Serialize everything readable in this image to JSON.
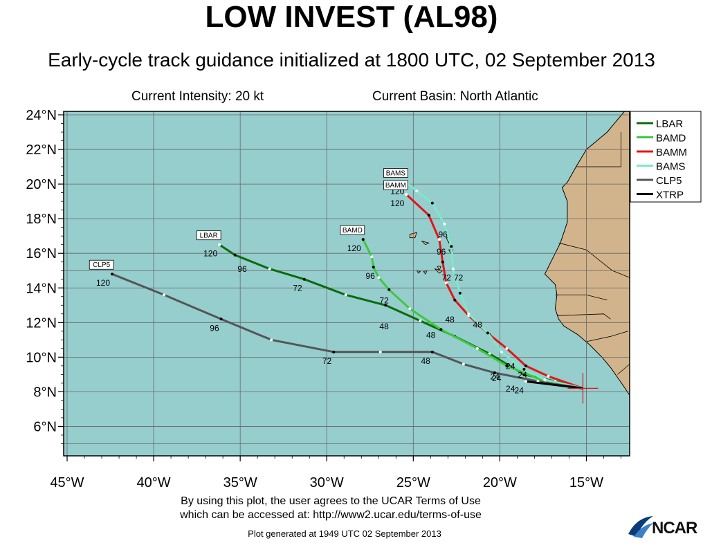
{
  "header": {
    "title": "LOW INVEST (AL98)",
    "subtitle": "Early-cycle track guidance initialized at 1800 UTC, 02 September 2013",
    "intensity": "Current Intensity: 20 kt",
    "basin": "Current Basin: North Atlantic"
  },
  "footer": {
    "terms_line1": "By using this plot, the user agrees to the UCAR Terms of Use",
    "terms_line2": "which can be accessed at: http://www2.ucar.edu/terms-of-use",
    "generated": "Plot generated at 1949 UTC   02 September 2013",
    "logo": "NCAR"
  },
  "colors": {
    "ocean": "#96cdcd",
    "land": "#d2b48c",
    "grid": "#666666",
    "center_marker": "#e0151a"
  },
  "map": {
    "lon_range": [
      -45.2,
      -12.5
    ],
    "lat_range": [
      4.3,
      24.2
    ],
    "lon_ticks": [
      {
        "value": -45,
        "label": "45°W"
      },
      {
        "value": -40,
        "label": "40°W"
      },
      {
        "value": -35,
        "label": "35°W"
      },
      {
        "value": -30,
        "label": "30°W"
      },
      {
        "value": -25,
        "label": "25°W"
      },
      {
        "value": -20,
        "label": "20°W"
      },
      {
        "value": -15,
        "label": "15°W"
      }
    ],
    "lat_ticks": [
      {
        "value": 6,
        "label": "6°N"
      },
      {
        "value": 8,
        "label": "8°N"
      },
      {
        "value": 10,
        "label": "10°N"
      },
      {
        "value": 12,
        "label": "12°N"
      },
      {
        "value": 14,
        "label": "14°N"
      },
      {
        "value": 16,
        "label": "16°N"
      },
      {
        "value": 18,
        "label": "18°N"
      },
      {
        "value": 20,
        "label": "20°N"
      },
      {
        "value": 22,
        "label": "22°N"
      },
      {
        "value": 24,
        "label": "24°N"
      }
    ],
    "storm_center": {
      "lon": -15.2,
      "lat": 8.2
    },
    "land_outline": [
      [
        -12.5,
        24.2
      ],
      [
        -12.8,
        24.2
      ],
      [
        -13.8,
        23.0
      ],
      [
        -15.0,
        22.0
      ],
      [
        -15.6,
        21.0
      ],
      [
        -16.1,
        20.1
      ],
      [
        -16.4,
        19.8
      ],
      [
        -16.1,
        19.0
      ],
      [
        -16.1,
        17.8
      ],
      [
        -16.5,
        16.6
      ],
      [
        -17.0,
        15.6
      ],
      [
        -17.4,
        14.8
      ],
      [
        -16.8,
        14.2
      ],
      [
        -16.7,
        13.6
      ],
      [
        -16.8,
        12.8
      ],
      [
        -16.6,
        12.2
      ],
      [
        -16.3,
        11.8
      ],
      [
        -15.5,
        11.3
      ],
      [
        -14.8,
        10.7
      ],
      [
        -14.1,
        10.0
      ],
      [
        -13.6,
        9.4
      ],
      [
        -12.9,
        8.4
      ],
      [
        -12.5,
        7.8
      ]
    ],
    "islands": [
      [
        [
          -25.2,
          17.1
        ],
        [
          -24.8,
          17.2
        ],
        [
          -24.9,
          16.9
        ],
        [
          -25.2,
          16.9
        ]
      ],
      [
        [
          -24.5,
          16.7
        ],
        [
          -24.1,
          16.6
        ],
        [
          -24.3,
          16.5
        ]
      ],
      [
        [
          -23.1,
          16.9
        ],
        [
          -22.9,
          16.9
        ],
        [
          -22.95,
          16.6
        ]
      ],
      [
        [
          -22.95,
          16.2
        ],
        [
          -22.7,
          16.2
        ],
        [
          -22.8,
          15.95
        ]
      ],
      [
        [
          -23.6,
          15.25
        ],
        [
          -23.4,
          15.25
        ],
        [
          -23.5,
          15.0
        ]
      ],
      [
        [
          -23.75,
          15.1
        ],
        [
          -23.3,
          15.0
        ],
        [
          -23.5,
          14.85
        ]
      ],
      [
        [
          -24.4,
          14.95
        ],
        [
          -24.2,
          15.0
        ],
        [
          -24.3,
          14.8
        ]
      ],
      [
        [
          -24.8,
          15.0
        ],
        [
          -24.6,
          14.95
        ],
        [
          -24.7,
          14.85
        ]
      ]
    ]
  },
  "chart_data": {
    "type": "line",
    "title": "LOW INVEST (AL98)",
    "xlabel": "",
    "ylabel": "",
    "xlim": [
      -45.2,
      -12.5
    ],
    "ylim": [
      4.3,
      24.2
    ],
    "legend_position": "top-right",
    "series": [
      {
        "name": "LBAR",
        "color": "#0a6b0a",
        "points": [
          [
            -15.2,
            8.2
          ],
          [
            -16.8,
            8.6
          ],
          [
            -18.6,
            9.0
          ],
          [
            -20.6,
            10.2
          ],
          [
            -22.6,
            11.2
          ],
          [
            -24.6,
            12.1
          ],
          [
            -26.6,
            13.0
          ],
          [
            -28.9,
            13.6
          ],
          [
            -31.3,
            14.5
          ],
          [
            -33.3,
            15.1
          ],
          [
            -35.3,
            15.9
          ],
          [
            -36.2,
            16.5
          ]
        ],
        "tau_labels": [
          {
            "lon": -19.0,
            "lat": 8.7,
            "text": "24"
          },
          {
            "lon": -23.6,
            "lat": 11.8,
            "text": "48"
          },
          {
            "lon": -31.3,
            "lat": 14.5,
            "text": "72"
          },
          {
            "lon": -34.5,
            "lat": 15.6,
            "text": "96"
          },
          {
            "lon": -36.2,
            "lat": 16.5,
            "text": "120"
          }
        ],
        "box_label": {
          "lon": -36.2,
          "lat": 16.5,
          "text": "LBAR"
        }
      },
      {
        "name": "BAMD",
        "color": "#3ec83e",
        "points": [
          [
            -15.2,
            8.2
          ],
          [
            -17.4,
            8.6
          ],
          [
            -19.6,
            9.5
          ],
          [
            -21.3,
            10.5
          ],
          [
            -23.4,
            11.6
          ],
          [
            -25.2,
            12.8
          ],
          [
            -26.4,
            13.9
          ],
          [
            -27.0,
            14.6
          ],
          [
            -27.3,
            15.2
          ],
          [
            -27.4,
            15.8
          ],
          [
            -27.9,
            16.8
          ]
        ],
        "tau_labels": [
          {
            "lon": -19.9,
            "lat": 9.4,
            "text": "24"
          },
          {
            "lon": -26.3,
            "lat": 12.3,
            "text": "48"
          },
          {
            "lon": -26.3,
            "lat": 13.8,
            "text": "72"
          },
          {
            "lon": -27.1,
            "lat": 15.2,
            "text": "96"
          },
          {
            "lon": -27.9,
            "lat": 16.8,
            "text": "120"
          }
        ],
        "box_label": {
          "lon": -27.9,
          "lat": 16.8,
          "text": "BAMD"
        }
      },
      {
        "name": "BAMM",
        "color": "#e61414",
        "points": [
          [
            -15.2,
            8.2
          ],
          [
            -17.2,
            8.9
          ],
          [
            -18.5,
            9.5
          ],
          [
            -19.6,
            10.5
          ],
          [
            -20.6,
            11.3
          ],
          [
            -21.8,
            12.4
          ],
          [
            -22.6,
            13.3
          ],
          [
            -23.1,
            14.3
          ],
          [
            -23.3,
            15.5
          ],
          [
            -23.5,
            16.8
          ],
          [
            -24.1,
            18.2
          ],
          [
            -25.4,
            19.4
          ]
        ],
        "tau_labels": [
          {
            "lon": -19.0,
            "lat": 10.0,
            "text": "24"
          },
          {
            "lon": -22.5,
            "lat": 12.7,
            "text": "48"
          },
          {
            "lon": -22.7,
            "lat": 15.1,
            "text": "72"
          },
          {
            "lon": -23.0,
            "lat": 16.6,
            "text": "96"
          },
          {
            "lon": -25.4,
            "lat": 19.4,
            "text": "120"
          }
        ],
        "box_label": {
          "lon": -25.4,
          "lat": 19.4,
          "text": "BAMM"
        }
      },
      {
        "name": "BAMS",
        "color": "#7fe8c7",
        "points": [
          [
            -15.2,
            8.2
          ],
          [
            -17.4,
            8.7
          ],
          [
            -18.6,
            9.3
          ],
          [
            -19.9,
            10.3
          ],
          [
            -20.7,
            11.4
          ],
          [
            -21.8,
            12.5
          ],
          [
            -22.3,
            13.7
          ],
          [
            -22.7,
            15.1
          ],
          [
            -22.8,
            16.4
          ],
          [
            -23.2,
            17.7
          ],
          [
            -23.9,
            18.9
          ],
          [
            -24.8,
            19.6
          ],
          [
            -25.4,
            20.1
          ]
        ],
        "tau_labels": [
          {
            "lon": -18.3,
            "lat": 9.5,
            "text": "24"
          },
          {
            "lon": -20.9,
            "lat": 12.4,
            "text": "48"
          },
          {
            "lon": -22.0,
            "lat": 15.1,
            "text": "72"
          },
          {
            "lon": -22.9,
            "lat": 17.6,
            "text": "96"
          },
          {
            "lon": -25.4,
            "lat": 20.1,
            "text": "120"
          }
        ],
        "box_label": {
          "lon": -25.4,
          "lat": 20.1,
          "text": "BAMS"
        }
      },
      {
        "name": "CLP5",
        "color": "#555555",
        "points": [
          [
            -15.2,
            8.2
          ],
          [
            -17.8,
            8.6
          ],
          [
            -20.3,
            9.1
          ],
          [
            -22.1,
            9.6
          ],
          [
            -23.9,
            10.3
          ],
          [
            -26.9,
            10.3
          ],
          [
            -29.6,
            10.3
          ],
          [
            -33.2,
            11.0
          ],
          [
            -36.1,
            12.2
          ],
          [
            -39.4,
            13.6
          ],
          [
            -42.4,
            14.8
          ]
        ],
        "tau_labels": [
          {
            "lon": -19.8,
            "lat": 9.3,
            "text": "24"
          },
          {
            "lon": -23.9,
            "lat": 10.3,
            "text": "48"
          },
          {
            "lon": -29.6,
            "lat": 10.3,
            "text": "72"
          },
          {
            "lon": -36.1,
            "lat": 12.2,
            "text": "96"
          },
          {
            "lon": -42.4,
            "lat": 14.8,
            "text": "120"
          }
        ],
        "box_label": {
          "lon": -42.4,
          "lat": 14.8,
          "text": "CLP5"
        }
      },
      {
        "name": "XTRP",
        "color": "#000000",
        "points": [
          [
            -15.2,
            8.2
          ],
          [
            -18.5,
            8.6
          ]
        ],
        "tau_labels": [
          {
            "lon": -18.5,
            "lat": 8.6,
            "text": "24"
          }
        ],
        "box_label": null
      }
    ]
  }
}
